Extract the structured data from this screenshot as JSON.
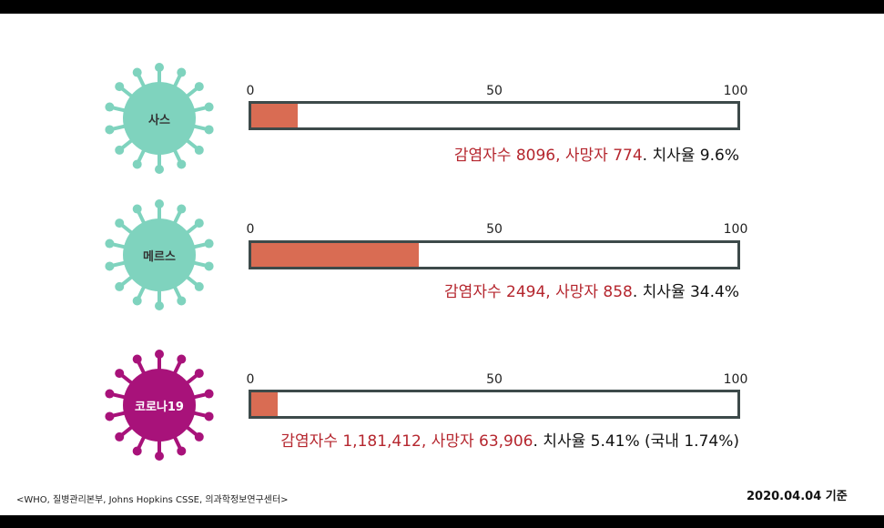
{
  "chart_data": {
    "type": "bar",
    "axis": {
      "ticks": [
        "0",
        "50",
        "100"
      ],
      "xlim": [
        0,
        100
      ]
    },
    "diseases": [
      {
        "name": "사스",
        "fatality_rate": 9.6,
        "color": "#7fd3be",
        "cases_text": "감염자수 8096, 사망자 774",
        "rate_text": ". 치사율 9.6%"
      },
      {
        "name": "메르스",
        "fatality_rate": 34.4,
        "color": "#7fd3be",
        "cases_text": "감염자수 2494, 사망자 858",
        "rate_text": ". 치사율 34.4%"
      },
      {
        "name": "코로나19",
        "fatality_rate": 5.41,
        "color": "#a8127a",
        "cases_text": "감염자수 1,181,412, 사망자 63,906",
        "rate_text": ". 치사율 5.41% (국내 1.74%)"
      }
    ]
  },
  "footer": {
    "source": "<WHO, 질병관리본부, Johns Hopkins CSSE, 의과학정보연구센터>",
    "date": "2020.04.04 기준"
  },
  "colors": {
    "bar_fill": "#d96c53",
    "highlight_text": "#b5262e",
    "bar_border": "#3d4a4a"
  }
}
